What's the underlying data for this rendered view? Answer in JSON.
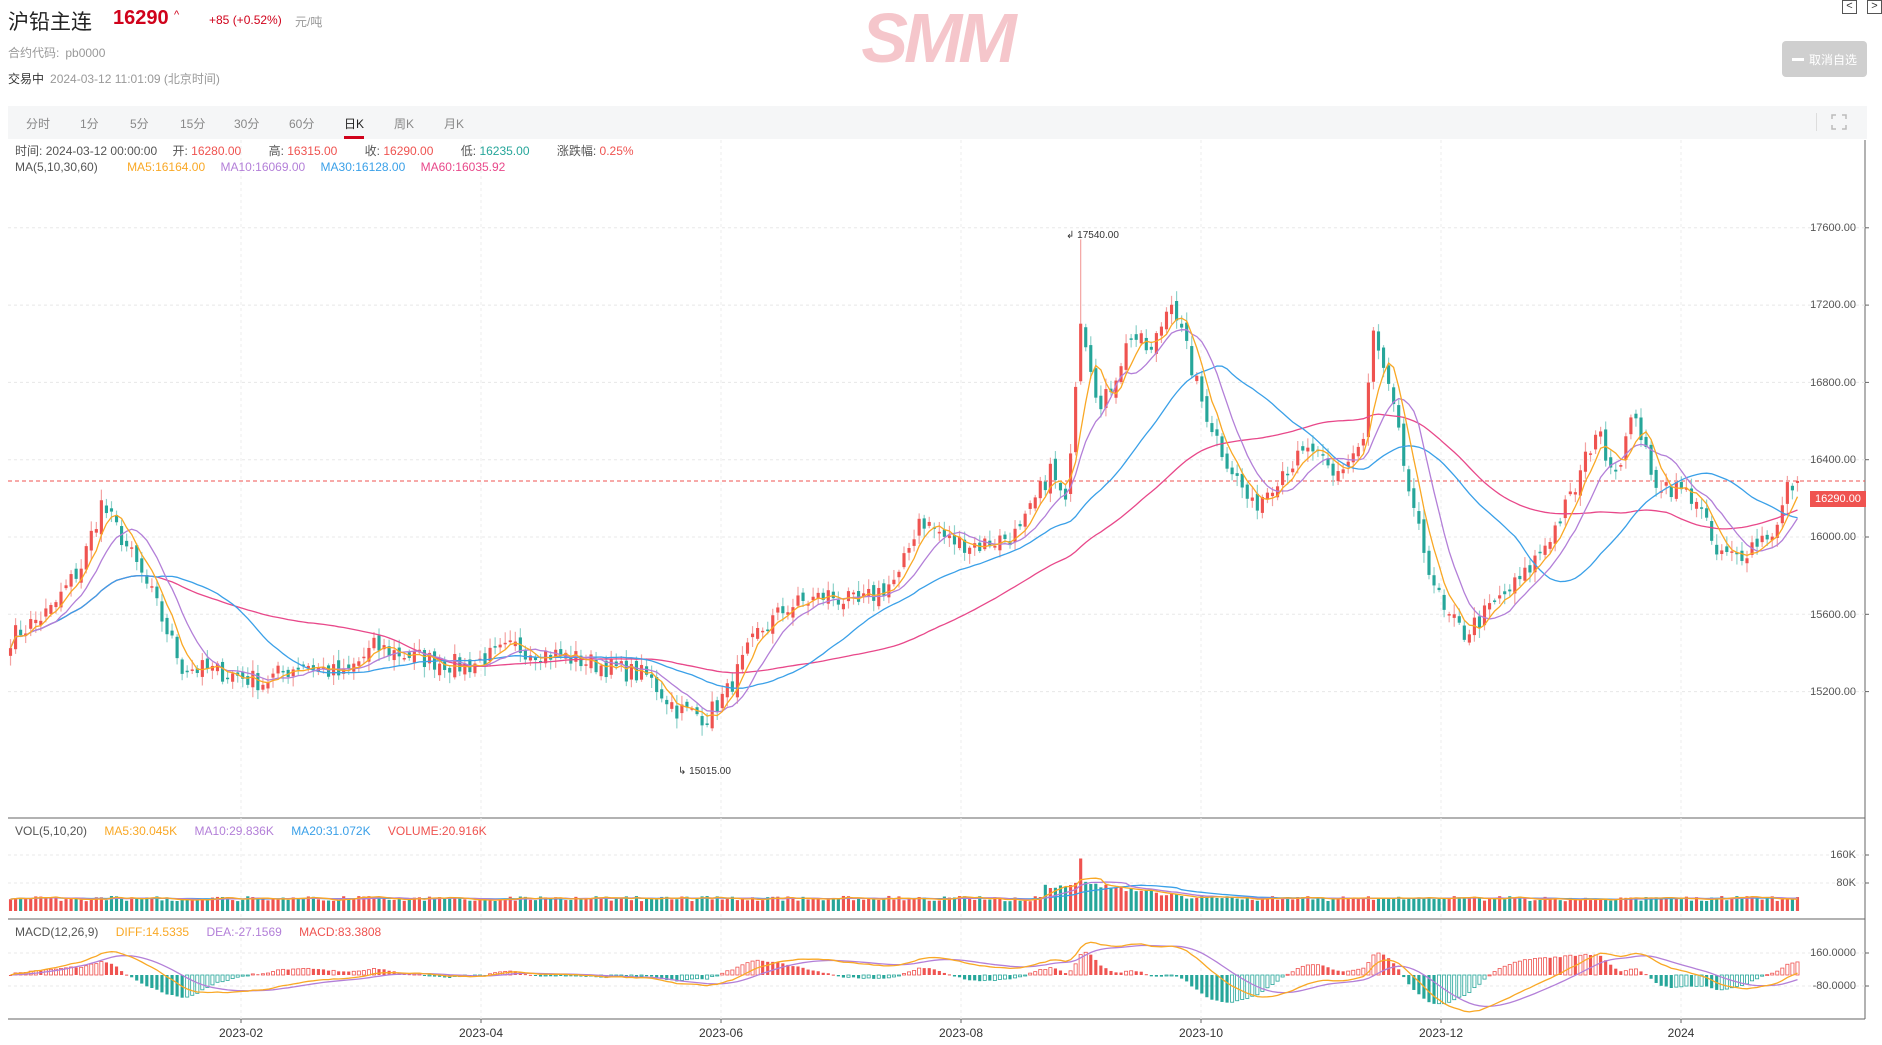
{
  "header": {
    "title": "沪铅主连",
    "price": "16290",
    "arrow": "^",
    "change": "+85 (+0.52%)",
    "unit": "元/吨",
    "code_label": "合约代码:",
    "code_value": "pb0000",
    "status": "交易中",
    "timestamp": "2024-03-12 11:01:09 (北京时间)",
    "logo_text": "SMM",
    "favorite_button": "取消自选",
    "nav_prev": "<",
    "nav_next": ">"
  },
  "tabs": [
    {
      "label": "分时",
      "active": false
    },
    {
      "label": "1分",
      "active": false
    },
    {
      "label": "5分",
      "active": false
    },
    {
      "label": "15分",
      "active": false
    },
    {
      "label": "30分",
      "active": false
    },
    {
      "label": "60分",
      "active": false
    },
    {
      "label": "日K",
      "active": true
    },
    {
      "label": "周K",
      "active": false
    },
    {
      "label": "月K",
      "active": false
    }
  ],
  "ohlc_info": {
    "time_label": "时间:",
    "time": "2024-03-12 00:00:00",
    "open_label": "开:",
    "open": "16280.00",
    "high_label": "高:",
    "high": "16315.00",
    "close_label": "收:",
    "close": "16290.00",
    "low_label": "低:",
    "low": "16235.00",
    "change_label": "涨跌幅:",
    "change": "0.25%"
  },
  "ma_info": {
    "label": "MA(5,10,30,60)",
    "ma5": "MA5:16164.00",
    "ma10": "MA10:16069.00",
    "ma30": "MA30:16128.00",
    "ma60": "MA60:16035.92"
  },
  "vol_info": {
    "label": "VOL(5,10,20)",
    "ma5": "MA5:30.045K",
    "ma10": "MA10:29.836K",
    "ma20": "MA20:31.072K",
    "volume": "VOLUME:20.916K"
  },
  "macd_info": {
    "label": "MACD(12,26,9)",
    "diff": "DIFF:14.5335",
    "dea": "DEA:-27.1569",
    "macd": "MACD:83.3808"
  },
  "colors": {
    "up": "#ef5350",
    "down": "#26a69a",
    "ma5": "#f9a825",
    "ma10": "#b37fd8",
    "ma30": "#3aa0e8",
    "ma60": "#e8488a",
    "accent": "#d0021b"
  },
  "chart_data": {
    "type": "candlestick",
    "title": "沪铅主连 日K",
    "last_price": "16290.00",
    "max_annotation": "17540.00",
    "min_annotation": "15015.00",
    "price_axis": {
      "ticks": [
        "17600.00",
        "17200.00",
        "16800.00",
        "16400.00",
        "16000.00",
        "15600.00",
        "15200.00"
      ],
      "range": [
        14880,
        17800
      ]
    },
    "volume_axis": {
      "ticks": [
        "160K",
        "80K"
      ]
    },
    "macd_axis": {
      "ticks": [
        "160.0000",
        "-80.0000"
      ]
    },
    "x_ticks": [
      "2023-02",
      "2023-04",
      "2023-06",
      "2023-08",
      "2023-10",
      "2023-12",
      "2024"
    ],
    "close_path": [
      [
        0,
        15480
      ],
      [
        8,
        15620
      ],
      [
        14,
        15850
      ],
      [
        18,
        16170
      ],
      [
        22,
        16000
      ],
      [
        28,
        15700
      ],
      [
        34,
        15330
      ],
      [
        42,
        15300
      ],
      [
        50,
        15250
      ],
      [
        58,
        15350
      ],
      [
        66,
        15280
      ],
      [
        72,
        15430
      ],
      [
        80,
        15380
      ],
      [
        90,
        15330
      ],
      [
        100,
        15430
      ],
      [
        110,
        15380
      ],
      [
        118,
        15330
      ],
      [
        126,
        15280
      ],
      [
        132,
        15110
      ],
      [
        138,
        15070
      ],
      [
        142,
        15200
      ],
      [
        148,
        15500
      ],
      [
        154,
        15640
      ],
      [
        162,
        15700
      ],
      [
        168,
        15650
      ],
      [
        176,
        15790
      ],
      [
        180,
        16100
      ],
      [
        186,
        15980
      ],
      [
        192,
        15960
      ],
      [
        200,
        16020
      ],
      [
        206,
        16350
      ],
      [
        209,
        16150
      ],
      [
        212,
        17150
      ],
      [
        216,
        16650
      ],
      [
        222,
        17050
      ],
      [
        226,
        16950
      ],
      [
        230,
        17250
      ],
      [
        232,
        17050
      ],
      [
        236,
        16700
      ],
      [
        240,
        16450
      ],
      [
        246,
        16150
      ],
      [
        252,
        16350
      ],
      [
        258,
        16450
      ],
      [
        262,
        16300
      ],
      [
        268,
        16500
      ],
      [
        270,
        17050
      ],
      [
        274,
        16650
      ],
      [
        278,
        16100
      ],
      [
        284,
        15600
      ],
      [
        288,
        15500
      ],
      [
        294,
        15650
      ],
      [
        300,
        15800
      ],
      [
        306,
        16050
      ],
      [
        310,
        16250
      ],
      [
        314,
        16550
      ],
      [
        318,
        16350
      ],
      [
        322,
        16650
      ],
      [
        325,
        16300
      ],
      [
        330,
        16250
      ],
      [
        334,
        16200
      ],
      [
        338,
        15900
      ],
      [
        342,
        15900
      ],
      [
        346,
        15980
      ],
      [
        350,
        16050
      ],
      [
        352,
        16250
      ],
      [
        354,
        16290
      ]
    ]
  }
}
